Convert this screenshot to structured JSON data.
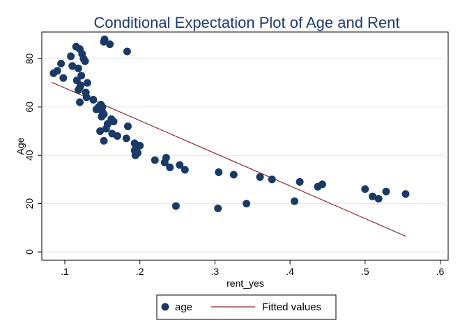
{
  "chart_data": {
    "type": "scatter",
    "title": "Conditional Expectation Plot of Age and Rent",
    "xlabel": "rent_yes",
    "ylabel": "Age",
    "xlim": [
      0.08,
      0.6
    ],
    "ylim": [
      0,
      90
    ],
    "x_ticks": [
      {
        "value": 0.1,
        "label": ".1"
      },
      {
        "value": 0.2,
        "label": ".2"
      },
      {
        "value": 0.3,
        "label": ".3"
      },
      {
        "value": 0.4,
        "label": ".4"
      },
      {
        "value": 0.5,
        "label": ".5"
      },
      {
        "value": 0.6,
        "label": ".6"
      }
    ],
    "y_ticks": [
      {
        "value": 0,
        "label": "0"
      },
      {
        "value": 20,
        "label": "20"
      },
      {
        "value": 40,
        "label": "40"
      },
      {
        "value": 60,
        "label": "60"
      },
      {
        "value": 80,
        "label": "80"
      }
    ],
    "grid": "horizontal",
    "legend_position": "bottom",
    "series": [
      {
        "name": "age",
        "kind": "scatter",
        "color": "#1a3a66",
        "points": [
          [
            0.085,
            74
          ],
          [
            0.09,
            75
          ],
          [
            0.095,
            78
          ],
          [
            0.098,
            72
          ],
          [
            0.108,
            81
          ],
          [
            0.11,
            77
          ],
          [
            0.115,
            85
          ],
          [
            0.12,
            84
          ],
          [
            0.123,
            82
          ],
          [
            0.125,
            80
          ],
          [
            0.127,
            79
          ],
          [
            0.116,
            71
          ],
          [
            0.118,
            76
          ],
          [
            0.122,
            73
          ],
          [
            0.152,
            87
          ],
          [
            0.153,
            88
          ],
          [
            0.16,
            86
          ],
          [
            0.183,
            83
          ],
          [
            0.118,
            67
          ],
          [
            0.12,
            68
          ],
          [
            0.121,
            69
          ],
          [
            0.13,
            70
          ],
          [
            0.128,
            66
          ],
          [
            0.129,
            64
          ],
          [
            0.12,
            62
          ],
          [
            0.138,
            63
          ],
          [
            0.142,
            59
          ],
          [
            0.145,
            60
          ],
          [
            0.148,
            61
          ],
          [
            0.15,
            60
          ],
          [
            0.15,
            58
          ],
          [
            0.152,
            57
          ],
          [
            0.149,
            56
          ],
          [
            0.157,
            53
          ],
          [
            0.155,
            51
          ],
          [
            0.147,
            50
          ],
          [
            0.162,
            55
          ],
          [
            0.165,
            54
          ],
          [
            0.163,
            49
          ],
          [
            0.17,
            48
          ],
          [
            0.182,
            47
          ],
          [
            0.152,
            46
          ],
          [
            0.184,
            52
          ],
          [
            0.193,
            45
          ],
          [
            0.195,
            43
          ],
          [
            0.2,
            44
          ],
          [
            0.193,
            42
          ],
          [
            0.197,
            41
          ],
          [
            0.194,
            40
          ],
          [
            0.22,
            38
          ],
          [
            0.233,
            37
          ],
          [
            0.235,
            39
          ],
          [
            0.24,
            35
          ],
          [
            0.253,
            36
          ],
          [
            0.26,
            34
          ],
          [
            0.248,
            19
          ],
          [
            0.305,
            33
          ],
          [
            0.325,
            32
          ],
          [
            0.304,
            18
          ],
          [
            0.342,
            20
          ],
          [
            0.36,
            31
          ],
          [
            0.376,
            30
          ],
          [
            0.406,
            21
          ],
          [
            0.413,
            29
          ],
          [
            0.437,
            27
          ],
          [
            0.443,
            28
          ],
          [
            0.5,
            26
          ],
          [
            0.51,
            23
          ],
          [
            0.518,
            22
          ],
          [
            0.528,
            25
          ],
          [
            0.554,
            24
          ]
        ]
      },
      {
        "name": "Fitted values",
        "kind": "line",
        "color": "#8c2b2b",
        "points": [
          [
            0.083,
            70.2
          ],
          [
            0.554,
            6.5
          ]
        ]
      }
    ]
  }
}
